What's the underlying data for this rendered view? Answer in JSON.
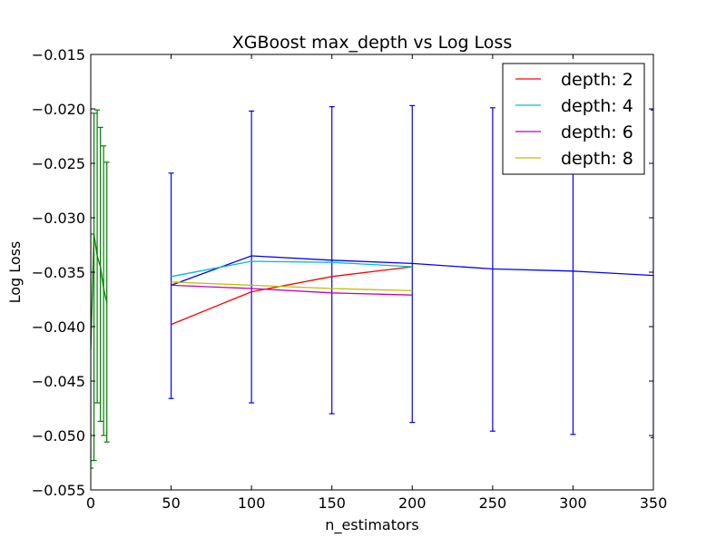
{
  "chart_data": {
    "type": "line",
    "title": "XGBoost max_depth vs Log Loss",
    "xlabel": "n_estimators",
    "ylabel": "Log Loss",
    "xlim": [
      0,
      350
    ],
    "ylim": [
      -0.055,
      -0.015
    ],
    "xticks": [
      0,
      50,
      100,
      150,
      200,
      250,
      300,
      350
    ],
    "xtick_labels": [
      "0",
      "50",
      "100",
      "150",
      "200",
      "250",
      "300",
      "350"
    ],
    "yticks": [
      -0.015,
      -0.02,
      -0.025,
      -0.03,
      -0.035,
      -0.04,
      -0.045,
      -0.05,
      -0.055
    ],
    "ytick_labels": [
      "−0.015",
      "−0.020",
      "−0.025",
      "−0.030",
      "−0.035",
      "−0.040",
      "−0.045",
      "−0.050",
      "−0.055"
    ],
    "grid": false,
    "legend_position": "top-right",
    "series": [
      {
        "name": "depth: 2",
        "color": "#ff0000",
        "x": [
          50,
          100,
          150,
          200
        ],
        "y": [
          -0.0398,
          -0.0368,
          -0.0354,
          -0.0345
        ]
      },
      {
        "name": "depth: 4",
        "color": "#00bfbf",
        "x": [
          50,
          100,
          150,
          200
        ],
        "y": [
          -0.0354,
          -0.034,
          -0.0341,
          -0.0345
        ]
      },
      {
        "name": "depth: 6",
        "color": "#bf00bf",
        "x": [
          50,
          100,
          150,
          200
        ],
        "y": [
          -0.0362,
          -0.0365,
          -0.0369,
          -0.0371
        ]
      },
      {
        "name": "depth: 8",
        "color": "#bfbf00",
        "x": [
          50,
          100,
          150,
          200
        ],
        "y": [
          -0.0359,
          -0.0362,
          -0.0365,
          -0.0367
        ]
      }
    ],
    "errorbar_series": [
      {
        "color": "#0000ff",
        "x": [
          50,
          100,
          150,
          200,
          250,
          300,
          350
        ],
        "y": [
          -0.0362,
          -0.0335,
          -0.0339,
          -0.0342,
          -0.0347,
          -0.0349,
          -0.0353
        ],
        "ylow": [
          -0.0466,
          -0.047,
          -0.048,
          -0.0488,
          -0.0496,
          -0.0499,
          -0.0502
        ],
        "yhigh": [
          -0.0259,
          -0.0202,
          -0.0198,
          -0.0197,
          -0.0199,
          -0.02,
          -0.0201
        ]
      },
      {
        "color": "#008000",
        "x": [
          0,
          2,
          4,
          6,
          8,
          10
        ],
        "y": [
          -0.0422,
          -0.0315,
          -0.0335,
          -0.0345,
          -0.0365,
          -0.0378
        ],
        "ylow": [
          -0.053,
          -0.0523,
          -0.047,
          -0.0487,
          -0.05,
          -0.0506
        ],
        "yhigh": [
          -0.0315,
          -0.0204,
          -0.0201,
          -0.0217,
          -0.0234,
          -0.0249
        ]
      }
    ]
  }
}
